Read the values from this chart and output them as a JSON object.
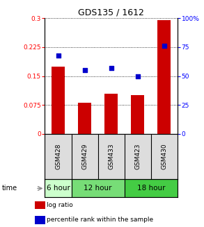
{
  "title": "GDS135 / 1612",
  "samples": [
    "GSM428",
    "GSM429",
    "GSM433",
    "GSM423",
    "GSM430"
  ],
  "log_ratio": [
    0.175,
    0.08,
    0.105,
    0.1,
    0.295
  ],
  "percentile_rank": [
    68,
    55,
    57,
    50,
    76
  ],
  "bar_color": "#cc0000",
  "dot_color": "#0000cc",
  "left_ylim": [
    0,
    0.3
  ],
  "right_ylim": [
    0,
    100
  ],
  "left_yticks": [
    0,
    0.075,
    0.15,
    0.225,
    0.3
  ],
  "left_yticklabels": [
    "0",
    "0.075",
    "0.15",
    "0.225",
    "0.3"
  ],
  "right_yticks": [
    0,
    25,
    50,
    75,
    100
  ],
  "right_yticklabels": [
    "0",
    "25",
    "50",
    "75",
    "100%"
  ],
  "time_groups": [
    {
      "label": "6 hour",
      "indices": [
        0
      ],
      "color": "#ccffcc"
    },
    {
      "label": "12 hour",
      "indices": [
        1,
        2
      ],
      "color": "#77dd77"
    },
    {
      "label": "18 hour",
      "indices": [
        3,
        4
      ],
      "color": "#44cc44"
    }
  ],
  "sample_bg_color": "#dddddd",
  "legend_log_ratio_label": "log ratio",
  "legend_percentile_label": "percentile rank within the sample"
}
